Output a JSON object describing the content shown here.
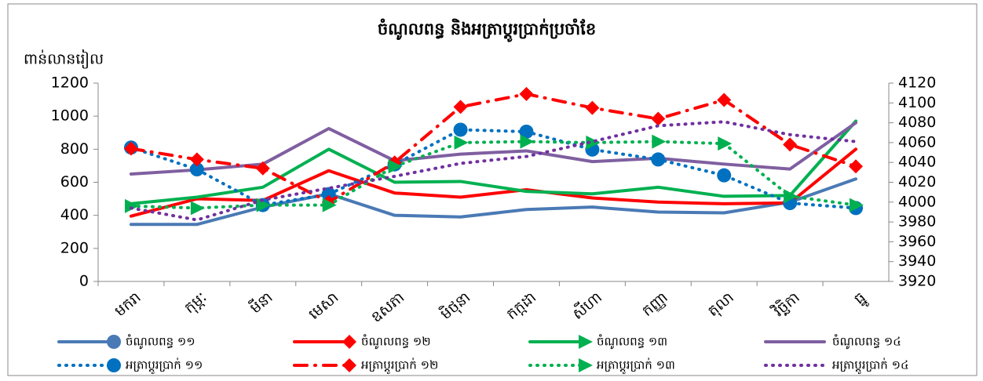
{
  "chart_data": {
    "type": "line",
    "title": "ចំណូលពន្ធ និងអត្រាប្តូរប្រាក់ប្រចាំខែ",
    "y_label": "ពាន់លានរៀល",
    "categories": [
      "មករា",
      "កុម្ភៈ",
      "មីនា",
      "មេសា",
      "ឧសភា",
      "មិថុនា",
      "កក្កដា",
      "សីហា",
      "កញ្ញា",
      "តុលា",
      "វិច្ឆិកា",
      "ធ្នូ"
    ],
    "ylim": [
      0,
      1200
    ],
    "yticks": [
      0,
      200,
      400,
      600,
      800,
      1000,
      1200
    ],
    "y2lim": [
      3920,
      4120
    ],
    "y2ticks": [
      3920,
      3940,
      3960,
      3980,
      4000,
      4020,
      4040,
      4060,
      4080,
      4100,
      4120
    ],
    "legend": "bottom",
    "series": [
      {
        "name": "ចំណូលពន្ធ ១១",
        "color": "#4a7ab5",
        "dash": "solid",
        "marker": "circle",
        "values": [
          345,
          345,
          450,
          530,
          400,
          390,
          435,
          450,
          420,
          415,
          480,
          620
        ]
      },
      {
        "name": "ចំណូលពន្ធ ១២",
        "color": "#ff0000",
        "dash": "solid",
        "marker": "diamond",
        "values": [
          395,
          500,
          490,
          670,
          535,
          510,
          555,
          505,
          480,
          470,
          475,
          800
        ]
      },
      {
        "name": "ចំណូលពន្ធ ១៣",
        "color": "#00b050",
        "dash": "solid",
        "marker": "triangle",
        "values": [
          470,
          510,
          570,
          800,
          600,
          605,
          545,
          530,
          570,
          515,
          520,
          970
        ]
      },
      {
        "name": "ចំណូលពន្ធ ១៤",
        "color": "#7f5fa0",
        "dash": "solid",
        "marker": "none",
        "values": [
          650,
          675,
          710,
          925,
          730,
          770,
          790,
          725,
          745,
          710,
          680,
          960
        ]
      },
      {
        "name": "អត្រាប្តូរប្រាក់ ១១",
        "color": "#0070c0",
        "dash": "dot",
        "marker": "circle",
        "axis": "y2",
        "values": [
          4055,
          4033,
          3997,
          4008,
          4038,
          4073,
          4071,
          4053,
          4043,
          4027,
          3999,
          3994
        ]
      },
      {
        "name": "អត្រាប្តូរប្រាក់ ១២",
        "color": "#ff0000",
        "dash": "dash-dot",
        "marker": "diamond",
        "axis": "y2",
        "values": [
          4054,
          4043,
          4034,
          4000,
          4040,
          4096,
          4109,
          4095,
          4084,
          4103,
          4058,
          4036
        ]
      },
      {
        "name": "អត្រាប្តូរប្រាក់ ១៣",
        "color": "#00b050",
        "dash": "dot",
        "marker": "triangle",
        "axis": "y2",
        "values": [
          3996,
          3994,
          3997,
          3997,
          4036,
          4060,
          4061,
          4060,
          4061,
          4059,
          4006,
          3997
        ]
      },
      {
        "name": "អត្រាប្តូរប្រាក់ ១៤",
        "color": "#7030a0",
        "dash": "dot",
        "marker": "none",
        "axis": "y2",
        "values": [
          3994,
          3982,
          4002,
          4014,
          4026,
          4039,
          4046,
          4061,
          4077,
          4081,
          4068,
          4061
        ]
      }
    ]
  }
}
